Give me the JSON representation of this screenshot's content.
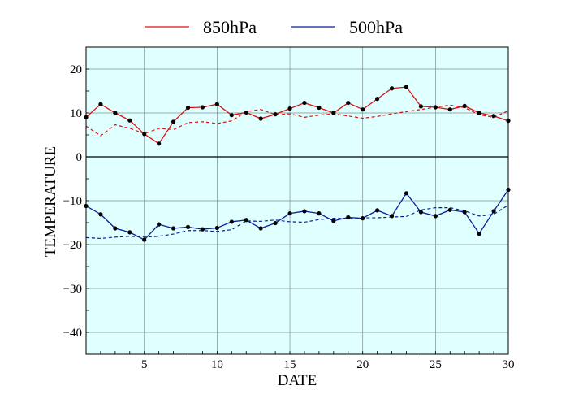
{
  "chart_data": {
    "type": "line",
    "title": "",
    "xlabel": "DATE",
    "ylabel": "TEMPERATURE",
    "xlim": [
      1,
      30
    ],
    "ylim": [
      -45,
      25
    ],
    "x_ticks": [
      5,
      10,
      15,
      20,
      25,
      30
    ],
    "y_ticks": [
      20,
      10,
      0,
      -10,
      -20,
      -30,
      -40
    ],
    "x_tick_labels": [
      "5",
      "10",
      "15",
      "20",
      "25",
      "30"
    ],
    "y_tick_labels": [
      "20",
      "10",
      "0",
      "−10",
      "−20",
      "−30",
      "−40"
    ],
    "grid": true,
    "plot_background": "#e0ffff",
    "legend_placement": "top",
    "x": [
      1,
      2,
      3,
      4,
      5,
      6,
      7,
      8,
      9,
      10,
      11,
      12,
      13,
      14,
      15,
      16,
      17,
      18,
      19,
      20,
      21,
      22,
      23,
      24,
      25,
      26,
      27,
      28,
      29,
      30
    ],
    "series": [
      {
        "name": "850hPa",
        "color": "#dd1111",
        "values": [
          9.0,
          12.0,
          10.0,
          8.3,
          5.2,
          3.0,
          8.0,
          11.2,
          11.3,
          12.0,
          9.5,
          10.1,
          8.7,
          9.7,
          11.0,
          12.3,
          11.2,
          10.0,
          12.3,
          10.8,
          13.2,
          15.6,
          15.9,
          11.5,
          11.3,
          10.8,
          11.6,
          10.0,
          9.3,
          8.2
        ],
        "normal": [
          7.0,
          4.8,
          7.3,
          6.5,
          5.3,
          6.5,
          6.2,
          7.8,
          8.0,
          7.6,
          8.2,
          10.3,
          10.8,
          9.6,
          9.8,
          9.0,
          9.5,
          9.8,
          9.3,
          8.8,
          9.2,
          9.8,
          10.3,
          10.8,
          11.3,
          11.8,
          11.2,
          9.6,
          9.0,
          10.5
        ]
      },
      {
        "name": "500hPa",
        "color": "#0c1f99",
        "values": [
          -11.2,
          -13.1,
          -16.3,
          -17.2,
          -18.9,
          -15.4,
          -16.3,
          -16.0,
          -16.5,
          -16.2,
          -14.8,
          -14.4,
          -16.3,
          -15.1,
          -12.9,
          -12.4,
          -12.9,
          -14.6,
          -13.8,
          -14.0,
          -12.2,
          -13.5,
          -8.3,
          -12.6,
          -13.5,
          -12.1,
          -12.6,
          -17.5,
          -12.4,
          -7.5
        ],
        "normal": [
          -18.4,
          -18.6,
          -18.3,
          -18.1,
          -18.3,
          -18.1,
          -17.6,
          -16.8,
          -16.8,
          -17.0,
          -16.6,
          -14.6,
          -14.7,
          -14.4,
          -14.8,
          -14.9,
          -14.3,
          -14.0,
          -14.1,
          -13.9,
          -13.9,
          -13.7,
          -13.6,
          -12.1,
          -11.6,
          -11.6,
          -12.3,
          -13.5,
          -13.1,
          -11.0
        ]
      }
    ]
  }
}
